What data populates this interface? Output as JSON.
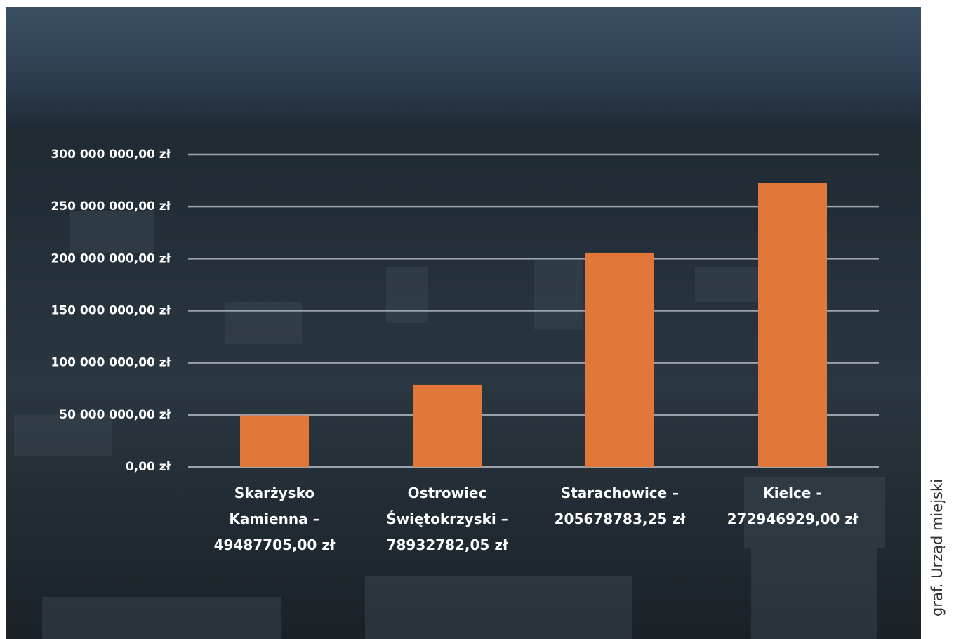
{
  "chart_data": {
    "type": "bar",
    "categories": [
      "Skarżysko\nKamienna –\n49487705,00 zł",
      "Ostrowiec\nŚwiętokrzyski –\n78932782,05 zł",
      "Starachowice –\n205678783,25 zł",
      "Kielce -\n272946929,00 zł"
    ],
    "values": [
      49487705,
      78932782.05,
      205678783.25,
      272946929
    ],
    "color": "#e2773a",
    "ylim": [
      0,
      300000000
    ],
    "yticks": [
      {
        "value": 0,
        "label": "0,00 zł"
      },
      {
        "value": 50000000,
        "label": "50 000 000,00 zł"
      },
      {
        "value": 100000000,
        "label": "100 000 000,00 zł"
      },
      {
        "value": 150000000,
        "label": "150 000 000,00 zł"
      },
      {
        "value": 200000000,
        "label": "200 000 000,00 zł"
      },
      {
        "value": 250000000,
        "label": "250 000 000,00 zł"
      },
      {
        "value": 300000000,
        "label": "300 000 000,00 zł"
      }
    ],
    "grid": true
  },
  "credit": "graf. Urząd miejski"
}
